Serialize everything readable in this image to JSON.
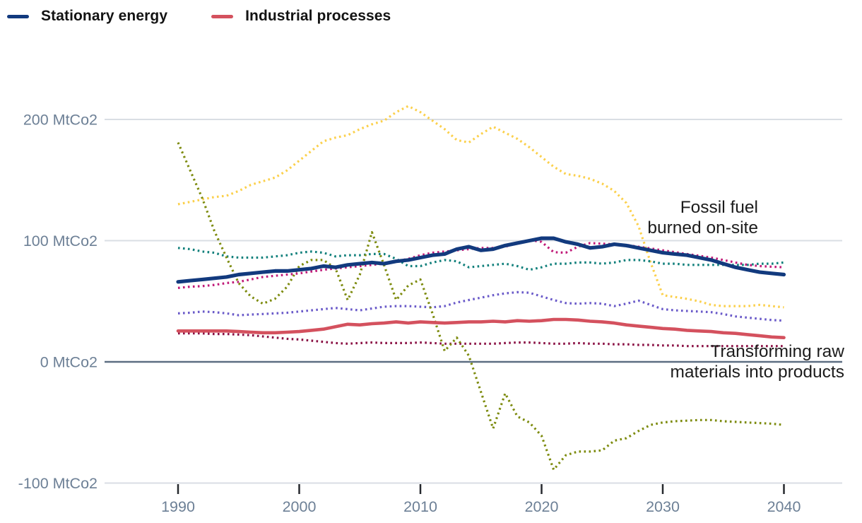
{
  "legend": {
    "items": [
      {
        "label": "Stationary energy",
        "color": "#123a7e"
      },
      {
        "label": "Industrial processes",
        "color": "#d4515e"
      }
    ]
  },
  "annotations": [
    {
      "id": "fossil-fuel",
      "line1": "Fossil fuel",
      "line2": "burned on-site"
    },
    {
      "id": "transforming",
      "line1": "Transforming raw",
      "line2": "materials into products"
    }
  ],
  "chart_data": {
    "type": "line",
    "unit": "MtCo2",
    "grid": "on",
    "legend_position": "top-left",
    "colors": {
      "grid": "#d9dee4",
      "zero_line": "#5d6e82",
      "axis_text": "#6d8096",
      "tick_mark": "#26292e",
      "annotation_text": "#1c1c1c",
      "legend_text": "#131313",
      "background": "#ffffff"
    },
    "x_axis": {
      "range": [
        1990,
        2040
      ],
      "ticks": [
        {
          "year": 1990,
          "label": "1990"
        },
        {
          "year": 2000,
          "label": "2000"
        },
        {
          "year": 2010,
          "label": "2010"
        },
        {
          "year": 2020,
          "label": "2020"
        },
        {
          "year": 2030,
          "label": "2030"
        },
        {
          "year": 2040,
          "label": "2040"
        }
      ]
    },
    "y_axis": {
      "range": [
        -110,
        230
      ],
      "ticks": [
        {
          "value": 200,
          "label": "200 MtCo2"
        },
        {
          "value": 100,
          "label": "100 MtCo2"
        },
        {
          "value": 0,
          "label": "0 MtCo2"
        },
        {
          "value": -100,
          "label": "-100 MtCo2"
        }
      ]
    },
    "series_start_year": 1990,
    "series_step_years": 1,
    "series": [
      {
        "id": "dotted-yellow",
        "label": "",
        "style": "dotted",
        "color": "#fbd04c",
        "width": 3.2,
        "values": [
          130,
          132,
          134,
          136,
          137,
          141,
          146,
          149,
          152,
          158,
          166,
          174,
          182,
          185,
          187,
          192,
          196,
          199,
          206,
          211,
          206,
          199,
          192,
          183,
          181,
          188,
          194,
          189,
          184,
          177,
          169,
          161,
          155,
          153.5,
          151,
          147,
          141,
          131,
          112,
          82,
          55,
          53.5,
          52,
          50,
          47,
          46,
          46,
          46,
          47,
          46,
          45
        ]
      },
      {
        "id": "dotted-teal",
        "label": "",
        "style": "dotted",
        "color": "#12807c",
        "width": 3.2,
        "values": [
          94,
          93,
          91,
          90,
          87,
          86,
          86,
          86,
          87,
          88,
          90,
          91,
          90,
          87,
          88,
          88,
          89,
          89,
          85,
          79,
          79,
          82,
          84,
          83,
          78,
          79,
          80,
          81,
          79,
          76,
          78,
          81,
          81,
          82,
          82,
          81,
          82,
          84,
          84,
          83,
          81,
          81,
          80,
          80,
          80,
          80,
          80,
          80,
          81,
          81,
          82
        ]
      },
      {
        "id": "dotted-purple",
        "label": "",
        "style": "dotted",
        "color": "#6a5ac9",
        "width": 3.2,
        "values": [
          40,
          40.5,
          41.5,
          41,
          40,
          38.5,
          39,
          39.5,
          40,
          40.5,
          41.5,
          42.5,
          43.5,
          44.5,
          43.5,
          42.5,
          44,
          45.5,
          46,
          46,
          45.5,
          45,
          46,
          49,
          51,
          53,
          55,
          56.5,
          57.5,
          57,
          54,
          51,
          48.5,
          48,
          48.5,
          48,
          46,
          48,
          50.5,
          47,
          43.5,
          42.5,
          42,
          41.5,
          41,
          39.5,
          37.5,
          36.5,
          35.5,
          34.5,
          34
        ]
      },
      {
        "id": "dotted-maroon",
        "label": "",
        "style": "dotted",
        "color": "#8a1144",
        "width": 3.2,
        "values": [
          23.5,
          23.5,
          23.5,
          23,
          23,
          22.5,
          22,
          21,
          20,
          19,
          18.5,
          17.5,
          16.5,
          15.5,
          15,
          15.5,
          16,
          15.5,
          15.5,
          15.5,
          16,
          15.5,
          15,
          15,
          15,
          15,
          15,
          15.5,
          16,
          16,
          15.5,
          15,
          15,
          15.5,
          15,
          15,
          14.5,
          14.5,
          14,
          14,
          13.5,
          13.5,
          13,
          13,
          13,
          13,
          13,
          13,
          13,
          13,
          13
        ]
      },
      {
        "id": "dotted-magenta",
        "label": "",
        "style": "dotted",
        "color": "#c01a78",
        "width": 3.2,
        "values": [
          61,
          62,
          62.5,
          63.5,
          65,
          66,
          68,
          70,
          71,
          72,
          73,
          74.5,
          76,
          77,
          78,
          79,
          80,
          81,
          83,
          85,
          88,
          90,
          91,
          92,
          93,
          94,
          94,
          95,
          98,
          100.5,
          99,
          90.5,
          90,
          95,
          98,
          97.5,
          97,
          96.5,
          95,
          93.5,
          92,
          90.5,
          89,
          87.5,
          86,
          84,
          82,
          80,
          79,
          78.5,
          78
        ]
      },
      {
        "id": "dotted-olive",
        "label": "",
        "style": "dotted",
        "color": "#7d8b0e",
        "width": 3.2,
        "values": [
          181,
          158,
          135,
          108,
          86,
          65,
          54,
          48,
          52,
          62,
          79,
          84,
          84,
          77,
          51,
          72,
          107,
          80,
          51,
          63,
          68,
          40,
          9,
          20,
          5,
          -25,
          -55,
          -26,
          -45,
          -50,
          -61,
          -89,
          -77,
          -74,
          -74,
          -73,
          -65,
          -63,
          -57,
          -52,
          -50,
          -49,
          -48.5,
          -48,
          -48,
          -49,
          -49.5,
          -50,
          -50.5,
          -51,
          -52
        ]
      },
      {
        "id": "industrial-processes",
        "label": "Industrial processes",
        "style": "solid",
        "color": "#d4515e",
        "width": 4.6,
        "values": [
          25.5,
          25.5,
          25.5,
          25.5,
          25.5,
          25,
          24.5,
          24,
          24,
          24.5,
          25,
          26,
          27,
          29,
          31,
          30.5,
          31.5,
          32,
          33,
          32,
          33,
          32.5,
          32,
          32.5,
          33,
          33,
          33.5,
          33,
          34,
          33.5,
          34,
          35,
          35,
          34.5,
          33.5,
          33,
          32,
          30.5,
          29.5,
          28.5,
          27.5,
          27,
          26,
          25.5,
          25,
          24,
          23.5,
          22.5,
          21.5,
          20.5,
          20
        ]
      },
      {
        "id": "stationary-energy",
        "label": "Stationary energy",
        "style": "solid",
        "color": "#123a7e",
        "width": 5.2,
        "values": [
          66,
          67,
          68,
          69,
          70,
          72,
          73,
          74,
          75,
          75,
          76,
          77,
          79,
          78,
          80,
          81,
          82,
          81,
          83,
          84,
          86,
          88,
          89,
          93,
          95,
          92,
          93,
          96,
          98,
          100,
          102,
          102,
          99,
          97,
          94,
          95,
          97,
          96,
          94,
          92,
          90,
          89,
          88,
          86,
          84,
          81,
          78,
          76,
          74,
          73,
          72
        ]
      }
    ]
  }
}
